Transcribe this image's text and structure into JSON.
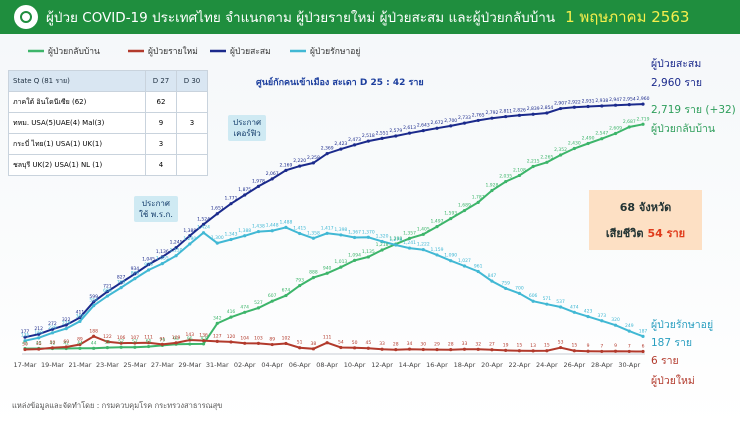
{
  "header": {
    "title": "ผู้ป่วย COVID-19 ประเทศไทย จำแนกตาม ผู้ป่วยรายใหม่ ผู้ป่วยสะสม และผู้ป่วยกลับบ้าน",
    "date": "1 พฤษภาคม 2563"
  },
  "colors": {
    "cumulative": "#1b2a8c",
    "recovered": "#3db56a",
    "active": "#41b8d4",
    "new": "#b23a2c",
    "header": "#1f8e3e"
  },
  "table": {
    "headers": [
      "State Q (81 ราย)",
      "D 27",
      "D 30"
    ],
    "rows": [
      [
        "ภาคใต้ อินโดนีเซีย (62)",
        "62",
        ""
      ],
      [
        "ทหม. USA(5)UAE(4) Mal(3)",
        "9",
        "3"
      ],
      [
        "กระบี่ ไทย(1) USA(1) UK(1)",
        "3",
        ""
      ],
      [
        "ชลบุรี UK(2) USA(1) NL (1)",
        "4",
        ""
      ]
    ]
  },
  "center_note": "ศูนย์กักคนเข้าเมือง สะเดา D 25 : 42 ราย",
  "callouts": {
    "emergency": "ประกาศ\nใช้ พ.ร.ก.",
    "curfew": "ประกาศ\nเคอร์ฟิว"
  },
  "summary": {
    "provinces": "68 จังหวัด",
    "deaths_label": "เสียชีวิต",
    "deaths_value": "54 ราย"
  },
  "right_labels": {
    "cumulative_name": "ผู้ป่วยสะสม",
    "cumulative_value": "2,960 ราย",
    "recovered_value": "2,719 ราย (+32)",
    "recovered_name": "ผู้ป่วยกลับบ้าน",
    "active_name": "ผู้ป่วยรักษาอยู่",
    "active_value": "187 ราย",
    "new_value": "6 ราย",
    "new_name": "ผู้ป่วยใหม่"
  },
  "source": "แหล่งข้อมูลและจัดทำโดย : กรมควบคุมโรค กระทรวงสาธารณสุข",
  "chart_data": {
    "type": "line",
    "title": "ผู้ป่วย COVID-19 ประเทศไทย จำแนกตาม ผู้ป่วยรายใหม่ ผู้ป่วยสะสม และผู้ป่วยกลับบ้าน",
    "legend_position": "top-left",
    "grid": false,
    "ylim": [
      0,
      3200
    ],
    "x": [
      "17-Mar",
      "18-Mar",
      "19-Mar",
      "20-Mar",
      "21-Mar",
      "22-Mar",
      "23-Mar",
      "24-Mar",
      "25-Mar",
      "26-Mar",
      "27-Mar",
      "28-Mar",
      "29-Mar",
      "30-Mar",
      "31-Mar",
      "01-Apr",
      "02-Apr",
      "03-Apr",
      "04-Apr",
      "05-Apr",
      "06-Apr",
      "07-Apr",
      "08-Apr",
      "09-Apr",
      "10-Apr",
      "11-Apr",
      "12-Apr",
      "13-Apr",
      "14-Apr",
      "15-Apr",
      "16-Apr",
      "17-Apr",
      "18-Apr",
      "19-Apr",
      "20-Apr",
      "21-Apr",
      "22-Apr",
      "23-Apr",
      "24-Apr",
      "25-Apr",
      "26-Apr",
      "27-Apr",
      "28-Apr",
      "29-Apr",
      "30-Apr",
      "01-May"
    ],
    "tick_labels": [
      "17-Mar",
      "19-Mar",
      "21-Mar",
      "23-Mar",
      "25-Mar",
      "27-Mar",
      "29-Mar",
      "31-Mar",
      "02-Apr",
      "04-Apr",
      "06-Apr",
      "08-Apr",
      "10-Apr",
      "12-Apr",
      "14-Apr",
      "16-Apr",
      "18-Apr",
      "20-Apr",
      "22-Apr",
      "24-Apr",
      "26-Apr",
      "28-Apr",
      "30-Apr"
    ],
    "series": [
      {
        "name": "ผู้ป่วยกลับบ้าน",
        "key": "recovered",
        "values": [
          41,
          42,
          42,
          42,
          44,
          44,
          52,
          57,
          57,
          65,
          79,
          93,
          95,
          97,
          342,
          416,
          474,
          527,
          607,
          674,
          793,
          888,
          940,
          1013,
          1094,
          1135,
          1218,
          1288,
          1357,
          1405,
          1497,
          1593,
          1689,
          1787,
          1928,
          2035,
          2108,
          2215,
          2265,
          2352,
          2430,
          2490,
          2547,
          2609,
          2687,
          2719
        ]
      },
      {
        "name": "ผู้ป่วยรายใหม่",
        "key": "new",
        "values": [
          30,
          35,
          50,
          60,
          89,
          188,
          122,
          106,
          107,
          111,
          91,
          109,
          143,
          136,
          127,
          120,
          104,
          103,
          89,
          102,
          51,
          38,
          111,
          54,
          50,
          45,
          33,
          28,
          34,
          30,
          29,
          28,
          33,
          32,
          27,
          19,
          15,
          13,
          15,
          53,
          15,
          9,
          7,
          9,
          7,
          6
        ]
      },
      {
        "name": "ผู้ป่วยสะสม",
        "key": "cumulative",
        "values": [
          177,
          212,
          272,
          322,
          411,
          599,
          721,
          827,
          934,
          1045,
          1136,
          1245,
          1388,
          1524,
          1651,
          1771,
          1875,
          1978,
          2067,
          2169,
          2220,
          2258,
          2369,
          2423,
          2473,
          2518,
          2551,
          2579,
          2613,
          2643,
          2672,
          2700,
          2733,
          2765,
          2792,
          2811,
          2826,
          2839,
          2854,
          2907,
          2922,
          2931,
          2938,
          2947,
          2954,
          2960
        ]
      },
      {
        "name": "ผู้ป่วยรักษาอยู่",
        "key": "active",
        "values": [
          135,
          169,
          229,
          279,
          366,
          554,
          668,
          769,
          876,
          979,
          1055,
          1150,
          1290,
          1424,
          1300,
          1343,
          1388,
          1438,
          1448,
          1488,
          1415,
          1358,
          1417,
          1398,
          1367,
          1370,
          1320,
          1278,
          1241,
          1222,
          1159,
          1090,
          1027,
          961,
          847,
          759,
          700,
          606,
          571,
          537,
          474,
          423,
          373,
          320,
          249,
          187
        ]
      }
    ]
  }
}
